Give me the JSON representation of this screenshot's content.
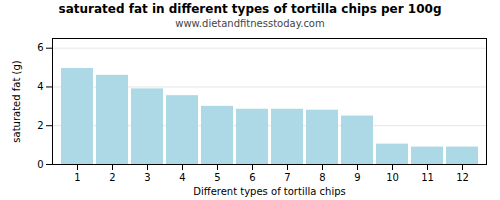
{
  "chart_data": {
    "type": "bar",
    "title": "saturated fat in different types of tortilla chips per 100g",
    "subtitle": "www.dietandfitnesstoday.com",
    "xlabel": "Different types of tortilla chips",
    "ylabel": "saturated fat (g)",
    "categories": [
      1,
      2,
      3,
      4,
      5,
      6,
      7,
      8,
      9,
      10,
      11,
      12
    ],
    "values": [
      4.95,
      4.6,
      3.9,
      3.55,
      3.0,
      2.85,
      2.85,
      2.8,
      2.5,
      1.05,
      0.9,
      0.9
    ],
    "color": "#add8e6",
    "ylim": [
      0,
      6.5
    ],
    "yticks": [
      0,
      2,
      4,
      6
    ],
    "grid": true
  }
}
